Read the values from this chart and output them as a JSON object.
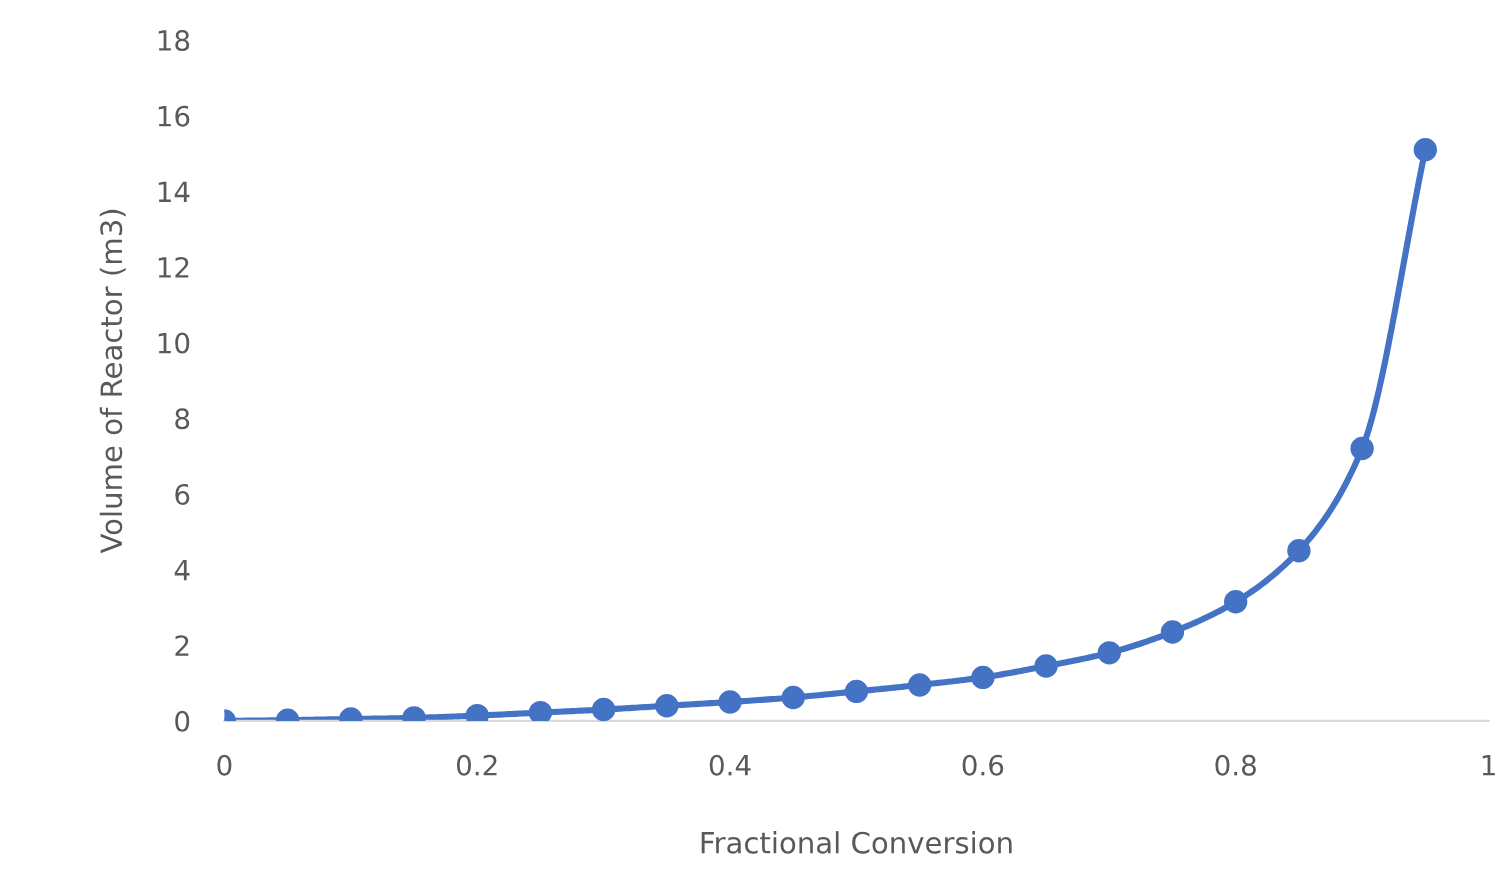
{
  "chart_data": {
    "type": "line",
    "xlabel": "Fractional Conversion",
    "ylabel": "Volume of Reactor (m3)",
    "x": [
      0,
      0.05,
      0.1,
      0.15,
      0.2,
      0.25,
      0.3,
      0.35,
      0.4,
      0.45,
      0.5,
      0.55,
      0.6,
      0.65,
      0.7,
      0.75,
      0.8,
      0.85,
      0.9,
      0.95
    ],
    "series": [
      {
        "color": "#4472c4",
        "values": [
          0,
          0.02,
          0.05,
          0.08,
          0.14,
          0.22,
          0.3,
          0.4,
          0.5,
          0.62,
          0.78,
          0.95,
          1.15,
          1.45,
          1.8,
          2.35,
          3.15,
          4.5,
          7.2,
          15.1
        ]
      }
    ],
    "xlim": [
      0,
      1
    ],
    "xticks": [
      0,
      0.2,
      0.4,
      0.6,
      0.8,
      1
    ],
    "ylim": [
      0,
      18
    ],
    "yticks": [
      0,
      2,
      4,
      6,
      8,
      10,
      12,
      14,
      16,
      18
    ],
    "grid": false,
    "legend": false,
    "marker": "circle",
    "line_style": "solid"
  }
}
